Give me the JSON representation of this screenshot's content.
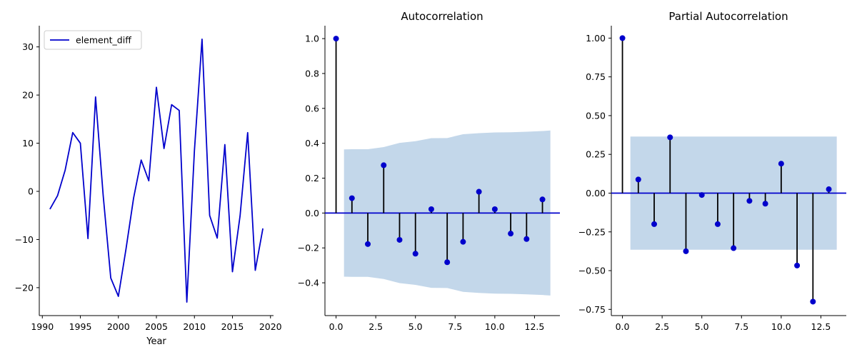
{
  "chart_data": [
    {
      "type": "line",
      "title": "",
      "xlabel": "Year",
      "ylabel": "",
      "xlim": [
        1989.6,
        2020.4
      ],
      "ylim": [
        -25.8,
        34.4
      ],
      "xticks": [
        1990,
        1995,
        2000,
        2005,
        2010,
        2015,
        2020
      ],
      "yticks": [
        -20,
        -10,
        0,
        10,
        20,
        30
      ],
      "grid": false,
      "legend": "top-left",
      "series": [
        {
          "name": "element_diff",
          "color": "#0000cc",
          "x": [
            1991,
            1992,
            1993,
            1994,
            1995,
            1996,
            1997,
            1998,
            1999,
            2000,
            2001,
            2002,
            2003,
            2004,
            2005,
            2006,
            2007,
            2008,
            2009,
            2010,
            2011,
            2012,
            2013,
            2014,
            2015,
            2016,
            2017,
            2018,
            2019
          ],
          "y": [
            -3.7,
            -0.9,
            4.4,
            12.2,
            10.0,
            -9.8,
            19.6,
            -0.8,
            -18.0,
            -21.8,
            -12.0,
            -1.4,
            6.5,
            2.2,
            21.6,
            8.9,
            18.0,
            16.8,
            -23.0,
            8.5,
            31.6,
            -5.0,
            -9.7,
            9.7,
            -16.7,
            -5.1,
            12.2,
            -16.4,
            -7.7
          ]
        }
      ]
    },
    {
      "type": "stem",
      "title": "Autocorrelation",
      "xlabel": "",
      "ylabel": "",
      "xlim": [
        -0.7,
        14.1
      ],
      "ylim": [
        -0.588,
        1.074
      ],
      "xticks": [
        0.0,
        2.5,
        5.0,
        7.5,
        10.0,
        12.5
      ],
      "xtick_labels": [
        "0.0",
        "2.5",
        "5.0",
        "7.5",
        "10.0",
        "12.5"
      ],
      "yticks": [
        -0.4,
        -0.2,
        0.0,
        0.2,
        0.4,
        0.6,
        0.8,
        1.0
      ],
      "ytick_labels": [
        "−0.4",
        "−0.2",
        "0.0",
        "0.2",
        "0.4",
        "0.6",
        "0.8",
        "1.0"
      ],
      "grid": false,
      "marker_color": "#0000cc",
      "stem_color": "#000000",
      "band_color": "#c3d7ea",
      "lags": [
        0,
        1,
        2,
        3,
        4,
        5,
        6,
        7,
        8,
        9,
        10,
        11,
        12,
        13
      ],
      "values": [
        1.0,
        0.085,
        -0.178,
        0.274,
        -0.154,
        -0.233,
        0.022,
        -0.282,
        -0.165,
        0.122,
        0.022,
        -0.118,
        -0.149,
        0.078
      ],
      "confint_x": [
        0.5,
        1.0,
        2.0,
        3.0,
        4.0,
        5.0,
        6.0,
        7.0,
        8.0,
        9.0,
        10.0,
        11.0,
        12.0,
        13.0,
        13.5
      ],
      "confint_upper": [
        0.365,
        0.366,
        0.366,
        0.378,
        0.402,
        0.412,
        0.429,
        0.43,
        0.452,
        0.458,
        0.462,
        0.463,
        0.466,
        0.47,
        0.473
      ],
      "confint_lower": [
        -0.365,
        -0.366,
        -0.366,
        -0.378,
        -0.402,
        -0.412,
        -0.429,
        -0.43,
        -0.452,
        -0.458,
        -0.462,
        -0.463,
        -0.466,
        -0.47,
        -0.473
      ]
    },
    {
      "type": "stem",
      "title": "Partial Autocorrelation",
      "xlabel": "",
      "ylabel": "",
      "xlim": [
        -0.7,
        14.1
      ],
      "ylim": [
        -0.79,
        1.08
      ],
      "xticks": [
        0.0,
        2.5,
        5.0,
        7.5,
        10.0,
        12.5
      ],
      "xtick_labels": [
        "0.0",
        "2.5",
        "5.0",
        "7.5",
        "10.0",
        "12.5"
      ],
      "yticks": [
        -0.75,
        -0.5,
        -0.25,
        0.0,
        0.25,
        0.5,
        0.75,
        1.0
      ],
      "ytick_labels": [
        "−0.75",
        "−0.50",
        "−0.25",
        "0.00",
        "0.25",
        "0.50",
        "0.75",
        "1.00"
      ],
      "grid": false,
      "marker_color": "#0000cc",
      "stem_color": "#000000",
      "band_color": "#c3d7ea",
      "lags": [
        0,
        1,
        2,
        3,
        4,
        5,
        6,
        7,
        8,
        9,
        10,
        11,
        12,
        13
      ],
      "values": [
        1.0,
        0.088,
        -0.2,
        0.36,
        -0.375,
        -0.012,
        -0.2,
        -0.355,
        -0.05,
        -0.068,
        0.19,
        -0.467,
        -0.7,
        0.025
      ],
      "confint_x": [
        0.5,
        13.5
      ],
      "confint_upper": [
        0.365,
        0.365
      ],
      "confint_lower": [
        -0.365,
        -0.365
      ]
    }
  ]
}
